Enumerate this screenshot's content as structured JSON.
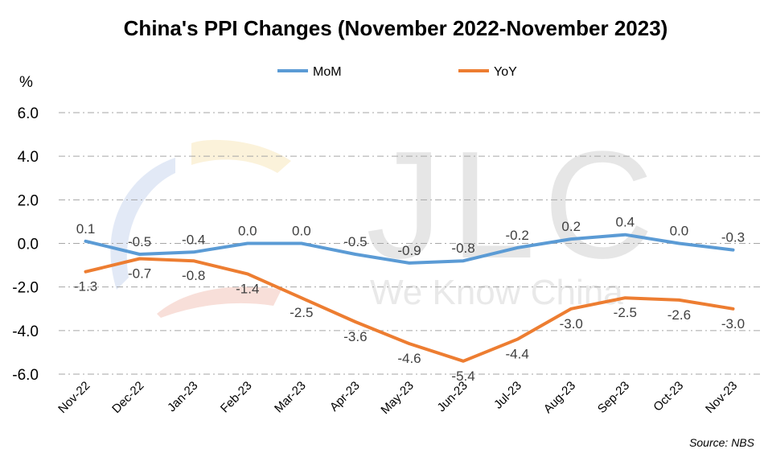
{
  "chart_data": {
    "type": "line",
    "title": "China's PPI Changes (November 2022-November 2023)",
    "ylabel": "%",
    "ylim": [
      -6.0,
      6.0
    ],
    "yticks": [
      "6.0",
      "4.0",
      "2.0",
      "0.0",
      "-2.0",
      "-4.0",
      "-6.0"
    ],
    "categories": [
      "Nov-22",
      "Dec-22",
      "Jan-23",
      "Feb-23",
      "Mar-23",
      "Apr-23",
      "May-23",
      "Jun-23",
      "Jul-23",
      "Aug-23",
      "Sep-23",
      "Oct-23",
      "Nov-23"
    ],
    "series": [
      {
        "name": "MoM",
        "color": "#5b9bd5",
        "values": [
          0.1,
          -0.5,
          -0.4,
          0.0,
          0.0,
          -0.5,
          -0.9,
          -0.8,
          -0.2,
          0.2,
          0.4,
          0.0,
          -0.3
        ],
        "labels": [
          "0.1",
          "-0.5",
          "-0.4",
          "0.0",
          "0.0",
          "-0.5",
          "-0.9",
          "-0.8",
          "-0.2",
          "0.2",
          "0.4",
          "0.0",
          "-0.3"
        ]
      },
      {
        "name": "YoY",
        "color": "#ed7d31",
        "values": [
          -1.3,
          -0.7,
          -0.8,
          -1.4,
          -2.5,
          -3.6,
          -4.6,
          -5.4,
          -4.4,
          -3.0,
          -2.5,
          -2.6,
          -3.0
        ],
        "labels": [
          "-1.3",
          "-0.7",
          "-0.8",
          "-1.4",
          "-2.5",
          "-3.6",
          "-4.6",
          "-5.4",
          "-4.4",
          "-3.0",
          "-2.5",
          "-2.6",
          "-3.0"
        ]
      }
    ],
    "grid": true,
    "legend_position": "top-center"
  },
  "watermark": {
    "brand": "JLC",
    "slogan": "We Know China"
  },
  "source": "Source: NBS"
}
